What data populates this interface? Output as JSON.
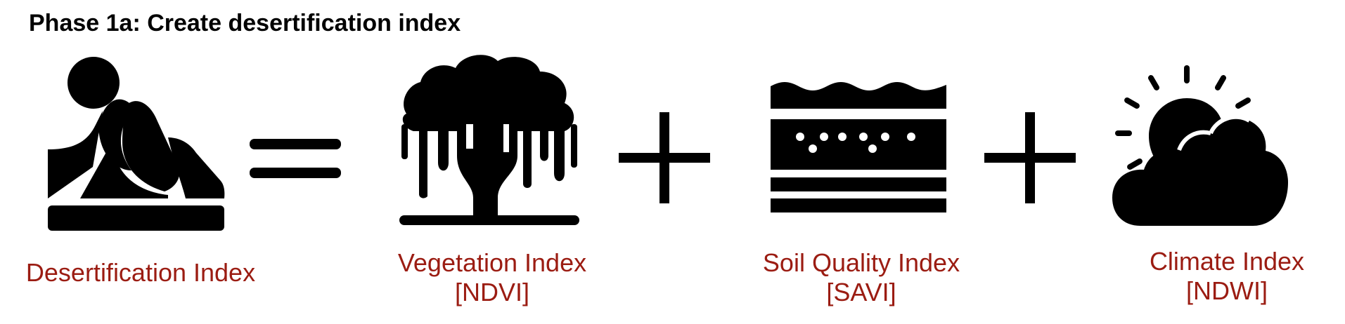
{
  "title": "Phase 1a: Create desertification index",
  "colors": {
    "label": "#9B1C12",
    "icon": "#000000"
  },
  "equation": {
    "desertification": {
      "icon": "desert-icon",
      "label": "Desertification Index"
    },
    "equals": {
      "icon": "equals-icon"
    },
    "vegetation": {
      "icon": "tree-icon",
      "label": "Vegetation Index",
      "sublabel": "[NDVI]"
    },
    "plus_1": {
      "icon": "plus-icon"
    },
    "soil": {
      "icon": "soil-layers-icon",
      "label": "Soil Quality Index",
      "sublabel": "[SAVI]"
    },
    "plus_2": {
      "icon": "plus-icon"
    },
    "climate": {
      "icon": "sun-cloud-icon",
      "label": "Climate Index",
      "sublabel": "[NDWI]"
    }
  }
}
